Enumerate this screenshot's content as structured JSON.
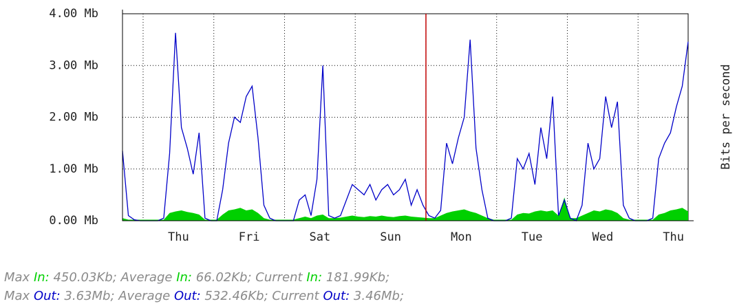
{
  "chart_data": {
    "type": "line",
    "y_axis_label": "Bits per second",
    "x": [
      0,
      2,
      4,
      6,
      8,
      10,
      12,
      14,
      16,
      18,
      20,
      22,
      24,
      26,
      28,
      30,
      32,
      34,
      36,
      38,
      40,
      42,
      44,
      46,
      48,
      50,
      52,
      54,
      56,
      58,
      60,
      62,
      64,
      66,
      68,
      70,
      72,
      74,
      76,
      78,
      80,
      82,
      84,
      86,
      88,
      90,
      92,
      94,
      96,
      98,
      100,
      102,
      104,
      106,
      108,
      110,
      112,
      114,
      116,
      118,
      120,
      122,
      124,
      126,
      128,
      130,
      132,
      134,
      136,
      138,
      140,
      142,
      144,
      146,
      148,
      150,
      152,
      154,
      156,
      158,
      160,
      162,
      164,
      166,
      168,
      170,
      172,
      174,
      176,
      178,
      180,
      182,
      184,
      186,
      188,
      190,
      192
    ],
    "series": [
      {
        "name": "In",
        "color": "#00d000",
        "fill": true,
        "values": [
          0.05,
          0.02,
          0.02,
          0.02,
          0.02,
          0.02,
          0.02,
          0.02,
          0.15,
          0.18,
          0.2,
          0.17,
          0.15,
          0.12,
          0.02,
          0.02,
          0.02,
          0.12,
          0.2,
          0.22,
          0.25,
          0.2,
          0.22,
          0.15,
          0.05,
          0.02,
          0.02,
          0.02,
          0.02,
          0.02,
          0.05,
          0.08,
          0.05,
          0.1,
          0.12,
          0.05,
          0.05,
          0.06,
          0.08,
          0.1,
          0.08,
          0.07,
          0.09,
          0.08,
          0.1,
          0.08,
          0.07,
          0.09,
          0.1,
          0.08,
          0.07,
          0.06,
          0.05,
          0.05,
          0.1,
          0.15,
          0.18,
          0.2,
          0.22,
          0.18,
          0.15,
          0.1,
          0.05,
          0.02,
          0.02,
          0.02,
          0.02,
          0.12,
          0.15,
          0.14,
          0.18,
          0.2,
          0.18,
          0.2,
          0.1,
          0.45,
          0.05,
          0.05,
          0.1,
          0.15,
          0.2,
          0.18,
          0.22,
          0.2,
          0.15,
          0.05,
          0.02,
          0.02,
          0.02,
          0.02,
          0.02,
          0.12,
          0.15,
          0.2,
          0.22,
          0.25,
          0.18
        ]
      },
      {
        "name": "Out",
        "color": "#0000c8",
        "fill": false,
        "values": [
          1.35,
          0.1,
          0.02,
          0,
          0,
          0,
          0,
          0.05,
          1.3,
          3.63,
          1.8,
          1.4,
          0.9,
          1.7,
          0.05,
          0,
          0,
          0.6,
          1.5,
          2.0,
          1.9,
          2.4,
          2.6,
          1.6,
          0.3,
          0.05,
          0,
          0,
          0,
          0,
          0.4,
          0.5,
          0.1,
          0.8,
          3.0,
          0.1,
          0.05,
          0.1,
          0.4,
          0.7,
          0.6,
          0.5,
          0.7,
          0.4,
          0.6,
          0.7,
          0.5,
          0.6,
          0.8,
          0.3,
          0.6,
          0.3,
          0.1,
          0.05,
          0.2,
          1.5,
          1.1,
          1.6,
          2.0,
          3.5,
          1.4,
          0.6,
          0.05,
          0,
          0,
          0,
          0.05,
          1.2,
          1.0,
          1.3,
          0.7,
          1.8,
          1.2,
          2.4,
          0.1,
          0.4,
          0.05,
          0,
          0.3,
          1.5,
          1.0,
          1.2,
          2.4,
          1.8,
          2.3,
          0.3,
          0.05,
          0,
          0,
          0,
          0.05,
          1.2,
          1.5,
          1.7,
          2.2,
          2.6,
          3.46
        ]
      }
    ],
    "xlim": [
      0,
      192
    ],
    "ylim": [
      0,
      4
    ],
    "yticks": [
      {
        "value": 0,
        "label": "0.00 Mb"
      },
      {
        "value": 1,
        "label": "1.00 Mb"
      },
      {
        "value": 2,
        "label": "2.00 Mb"
      },
      {
        "value": 3,
        "label": "3.00 Mb"
      },
      {
        "value": 4,
        "label": "4.00 Mb"
      }
    ],
    "xgrid": [
      7,
      31,
      55,
      79,
      103,
      127,
      151,
      175
    ],
    "xticks": [
      {
        "value": 19,
        "label": "Thu"
      },
      {
        "value": 43,
        "label": "Fri"
      },
      {
        "value": 67,
        "label": "Sat"
      },
      {
        "value": 91,
        "label": "Sun"
      },
      {
        "value": 115,
        "label": "Mon"
      },
      {
        "value": 139,
        "label": "Tue"
      },
      {
        "value": 163,
        "label": "Wed"
      },
      {
        "value": 187,
        "label": "Thu"
      }
    ],
    "marker_x": 103,
    "marker_color": "#c00000",
    "grid": true
  },
  "stats": [
    [
      {
        "label": "Max",
        "series": "In",
        "value": "450.03Kb"
      },
      {
        "label": "Average",
        "series": "In",
        "value": "66.02Kb"
      },
      {
        "label": "Current",
        "series": "In",
        "value": "181.99Kb"
      }
    ],
    [
      {
        "label": "Max",
        "series": "Out",
        "value": "3.63Mb"
      },
      {
        "label": "Average",
        "series": "Out",
        "value": "532.46Kb"
      },
      {
        "label": "Current",
        "series": "Out",
        "value": "3.46Mb"
      }
    ]
  ]
}
